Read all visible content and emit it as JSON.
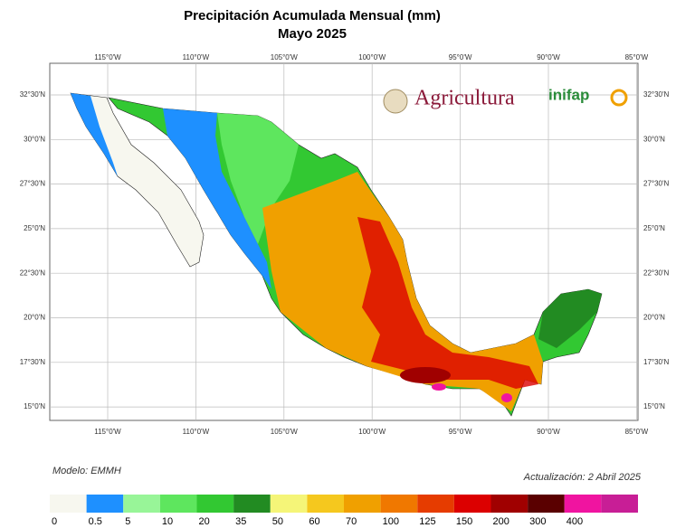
{
  "title": [
    "Precipitación Acumulada Mensual (mm)",
    "Mayo 2025"
  ],
  "lon_labels": [
    "115°0'W",
    "110°0'W",
    "105°0'W",
    "100°0'W",
    "95°0'W",
    "90°0'W",
    "85°0'W"
  ],
  "lat_labels": [
    "32°30'N",
    "30°0'N",
    "27°30'N",
    "25°0'N",
    "22°30'N",
    "20°0'N",
    "17°30'N",
    "15°0'N"
  ],
  "logos": {
    "agricultura": "Agricultura",
    "inifap": "inifap"
  },
  "model": "Modelo: EMMH",
  "updated": "Actualización: 2 Abril 2025",
  "legend": {
    "labels": [
      "0",
      "0.5",
      "5",
      "10",
      "20",
      "35",
      "50",
      "60",
      "70",
      "100",
      "125",
      "150",
      "200",
      "300",
      "400"
    ],
    "colors": [
      "#f7f7ef",
      "#1e90ff",
      "#98f598",
      "#5ee65e",
      "#32c832",
      "#228b22",
      "#f5f578",
      "#f5c81e",
      "#f0a000",
      "#f07800",
      "#e63c00",
      "#dc0000",
      "#a00000",
      "#5a0000",
      "#f014a0",
      "#c81e96"
    ]
  }
}
